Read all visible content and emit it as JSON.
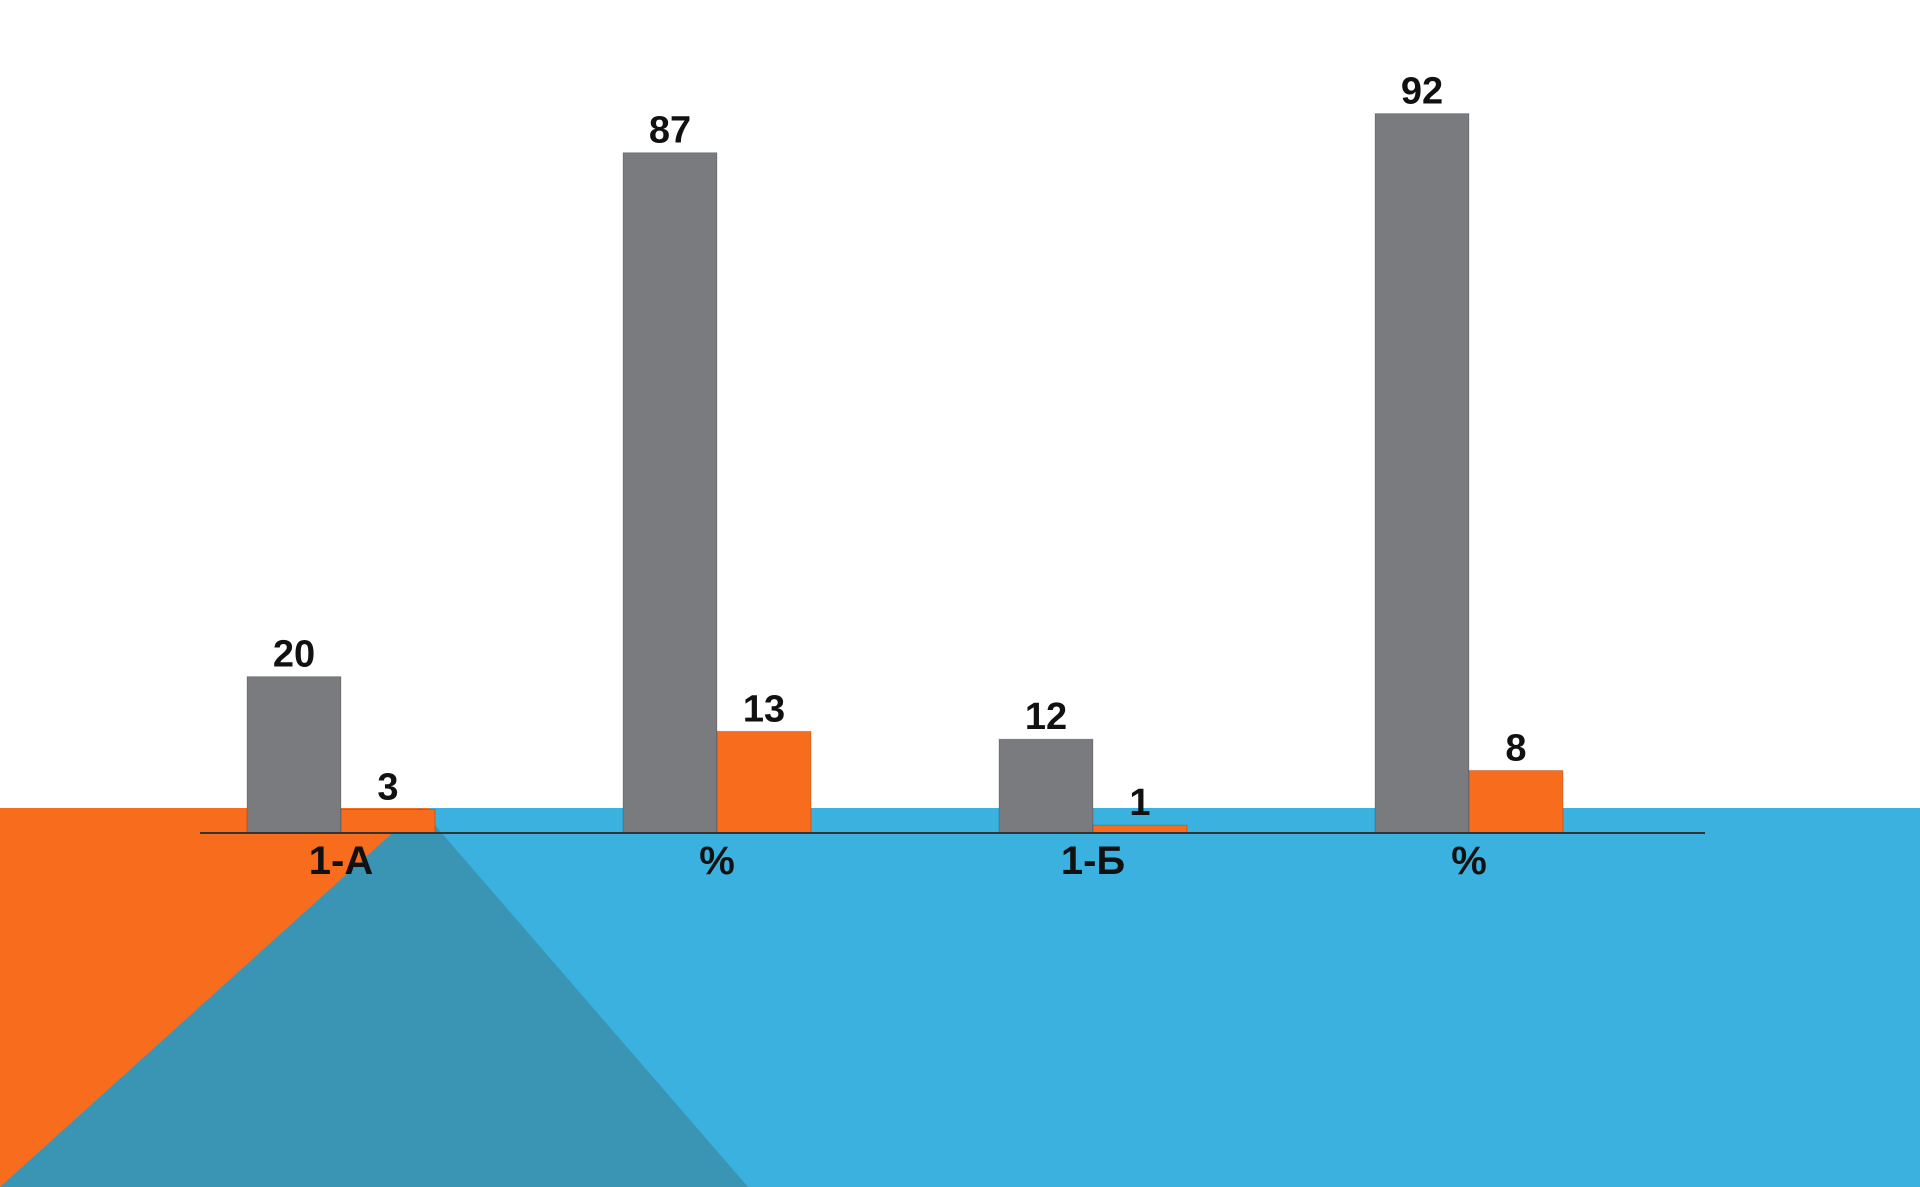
{
  "colors": {
    "background": "#ffffff",
    "band_blue": "#3ab1df",
    "band_orange": "#f86c1d",
    "band_overlap": "#3995b3",
    "series_gray": "#7a7b7e",
    "series_orange": "#f86c1d",
    "axis": "#333333"
  },
  "chart_data": {
    "type": "bar",
    "categories": [
      "1-А",
      "%",
      "1-Б",
      "%"
    ],
    "series": [
      {
        "values": [
          20,
          87,
          12,
          92
        ],
        "color": "#7a7b7e"
      },
      {
        "values": [
          3,
          13,
          1,
          8
        ],
        "color": "#f86c1d"
      }
    ],
    "data_labels": true,
    "ylim": [
      0,
      100
    ],
    "grid": false,
    "legend": "none"
  }
}
